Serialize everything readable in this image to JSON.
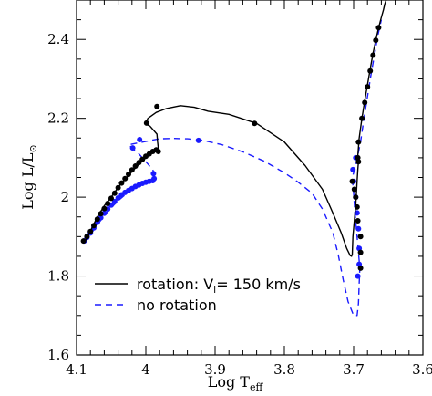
{
  "chart_data": {
    "type": "line",
    "xlabel": "Log T",
    "xlabel_sub": "eff",
    "ylabel": "Log L/L",
    "ylabel_sub": "⊙",
    "xlim": [
      4.1,
      3.6
    ],
    "ylim": [
      1.6,
      2.5
    ],
    "x_major_ticks": [
      4.1,
      4.0,
      3.9,
      3.8,
      3.7,
      3.6
    ],
    "x_tick_labels": [
      "4.1",
      "4",
      "3.9",
      "3.8",
      "3.7",
      "3.6"
    ],
    "y_major_ticks": [
      1.6,
      1.8,
      2.0,
      2.2,
      2.4
    ],
    "y_tick_labels": [
      "1.6",
      "1.8",
      "2",
      "2.2",
      "2.4"
    ],
    "legend_position": "bottom-left",
    "series": [
      {
        "name": "rotation: V",
        "name_sub": "i",
        "name_suffix": "= 150 km/s",
        "color": "#000000",
        "dash": "solid",
        "x": [
          4.087,
          4.08,
          4.07,
          4.06,
          4.05,
          4.04,
          4.03,
          4.02,
          4.01,
          4.0,
          3.99,
          3.983,
          3.981,
          3.983,
          3.984,
          3.994,
          4.001,
          3.997,
          3.985,
          3.97,
          3.95,
          3.93,
          3.91,
          3.88,
          3.84,
          3.8,
          3.77,
          3.745,
          3.73,
          3.718,
          3.71,
          3.705,
          3.703,
          3.702,
          3.701,
          3.697,
          3.695,
          3.694,
          3.693,
          3.693,
          3.694,
          3.694,
          3.692,
          3.688,
          3.684,
          3.68,
          3.676,
          3.672,
          3.668,
          3.664,
          3.66,
          3.657,
          3.655,
          3.653
        ],
        "y": [
          1.89,
          1.914,
          1.95,
          1.978,
          2.0,
          2.025,
          2.045,
          2.065,
          2.083,
          2.1,
          2.114,
          2.12,
          2.11,
          2.14,
          2.16,
          2.18,
          2.186,
          2.2,
          2.215,
          2.225,
          2.232,
          2.228,
          2.218,
          2.21,
          2.187,
          2.14,
          2.08,
          2.02,
          1.96,
          1.91,
          1.87,
          1.852,
          1.85,
          1.855,
          1.9,
          1.98,
          2.04,
          2.07,
          2.09,
          2.1,
          2.1,
          2.105,
          2.15,
          2.2,
          2.245,
          2.285,
          2.325,
          2.365,
          2.398,
          2.43,
          2.456,
          2.475,
          2.49,
          2.5
        ],
        "markers_x": [
          4.09,
          4.085,
          4.08,
          4.075,
          4.07,
          4.065,
          4.06,
          4.055,
          4.05,
          4.045,
          4.04,
          4.035,
          4.03,
          4.025,
          4.02,
          4.015,
          4.01,
          4.005,
          4.0,
          3.995,
          3.99,
          3.985,
          3.982,
          3.999,
          3.984,
          3.843,
          3.69,
          3.69,
          3.69,
          3.694,
          3.695,
          3.697,
          3.699,
          3.702,
          3.693,
          3.694,
          3.693,
          3.688,
          3.684,
          3.68,
          3.676,
          3.672,
          3.668,
          3.664
        ],
        "markers_y": [
          1.889,
          1.9,
          1.913,
          1.928,
          1.944,
          1.958,
          1.971,
          1.984,
          1.997,
          2.01,
          2.024,
          2.036,
          2.047,
          2.058,
          2.069,
          2.079,
          2.088,
          2.096,
          2.104,
          2.11,
          2.116,
          2.12,
          2.116,
          2.188,
          2.23,
          2.187,
          1.82,
          1.86,
          1.9,
          1.94,
          1.975,
          2.0,
          2.02,
          2.04,
          2.09,
          2.1,
          2.14,
          2.2,
          2.24,
          2.28,
          2.32,
          2.36,
          2.398,
          2.43
        ]
      },
      {
        "name": "no rotation",
        "color": "#1a1aff",
        "dash": "dashed",
        "x": [
          4.089,
          4.08,
          4.07,
          4.06,
          4.05,
          4.04,
          4.03,
          4.02,
          4.01,
          4.0,
          3.995,
          3.99,
          3.987,
          3.988,
          3.99,
          4.0,
          4.01,
          4.02,
          4.025,
          4.01,
          3.99,
          3.98,
          3.96,
          3.94,
          3.92,
          3.89,
          3.86,
          3.83,
          3.8,
          3.78,
          3.76,
          3.745,
          3.73,
          3.722,
          3.715,
          3.708,
          3.7,
          3.695,
          3.693,
          3.692,
          3.691,
          3.693,
          3.695,
          3.698,
          3.7,
          3.702,
          3.697,
          3.69,
          3.685,
          3.68,
          3.675,
          3.67,
          3.665,
          3.66
        ],
        "y": [
          1.889,
          1.905,
          1.93,
          1.953,
          1.973,
          1.991,
          2.006,
          2.02,
          2.03,
          2.038,
          2.041,
          2.043,
          2.05,
          2.06,
          2.07,
          2.09,
          2.11,
          2.125,
          2.133,
          2.138,
          2.145,
          2.148,
          2.149,
          2.148,
          2.145,
          2.133,
          2.115,
          2.092,
          2.062,
          2.038,
          2.01,
          1.97,
          1.91,
          1.852,
          1.79,
          1.735,
          1.7,
          1.7,
          1.73,
          1.78,
          1.82,
          1.86,
          1.9,
          1.96,
          2.01,
          2.05,
          2.08,
          2.14,
          2.2,
          2.255,
          2.31,
          2.36,
          2.41,
          2.45
        ],
        "markers_x": [
          4.089,
          4.085,
          4.08,
          4.075,
          4.07,
          4.065,
          4.06,
          4.055,
          4.05,
          4.045,
          4.04,
          4.035,
          4.03,
          4.025,
          4.02,
          4.015,
          4.01,
          4.005,
          4.0,
          3.995,
          3.99,
          3.988,
          3.989,
          4.009,
          4.019,
          3.924,
          3.694,
          3.692,
          3.692,
          3.693,
          3.695,
          3.697,
          3.7,
          3.701,
          3.697
        ],
        "markers_y": [
          1.889,
          1.898,
          1.909,
          1.922,
          1.936,
          1.948,
          1.959,
          1.97,
          1.98,
          1.989,
          1.998,
          2.006,
          2.012,
          2.017,
          2.022,
          2.027,
          2.031,
          2.035,
          2.038,
          2.04,
          2.042,
          2.047,
          2.06,
          2.146,
          2.125,
          2.144,
          1.8,
          1.83,
          1.87,
          1.92,
          1.96,
          2.0,
          2.04,
          2.07,
          2.1
        ]
      }
    ]
  }
}
